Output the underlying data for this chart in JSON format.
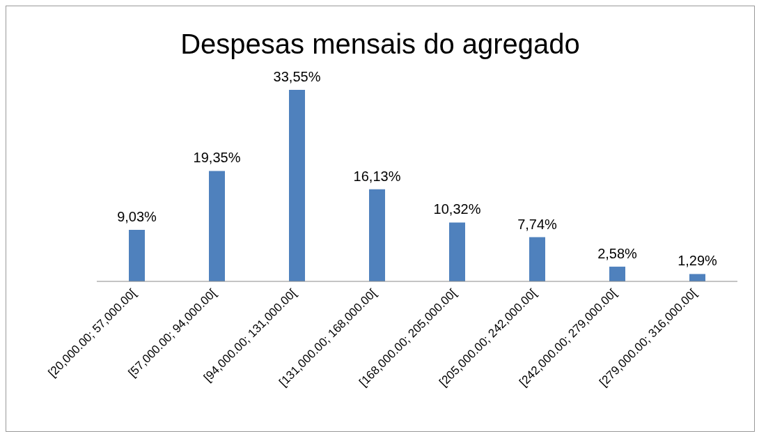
{
  "chart_data": {
    "type": "bar",
    "title": "Despesas mensais do agregado",
    "categories": [
      "[20,000.00; 57,000.00[",
      "[57,000.00; 94,000.00[",
      "[94,000.00; 131,000.00[",
      "[131,000.00; 168,000.00[",
      "[168,000.00; 205,000.00[",
      "[205,000.00; 242,000.00[",
      "[242,000.00; 279,000.00[",
      "[279,000.00; 316,000.00["
    ],
    "values": [
      9.03,
      19.35,
      33.55,
      16.13,
      10.32,
      7.74,
      2.58,
      1.29
    ],
    "value_labels": [
      "9,03%",
      "19,35%",
      "33,55%",
      "16,13%",
      "10,32%",
      "7,74%",
      "2,58%",
      "1,29%"
    ],
    "color": "#4f81bd",
    "grid": false,
    "legend": false
  }
}
